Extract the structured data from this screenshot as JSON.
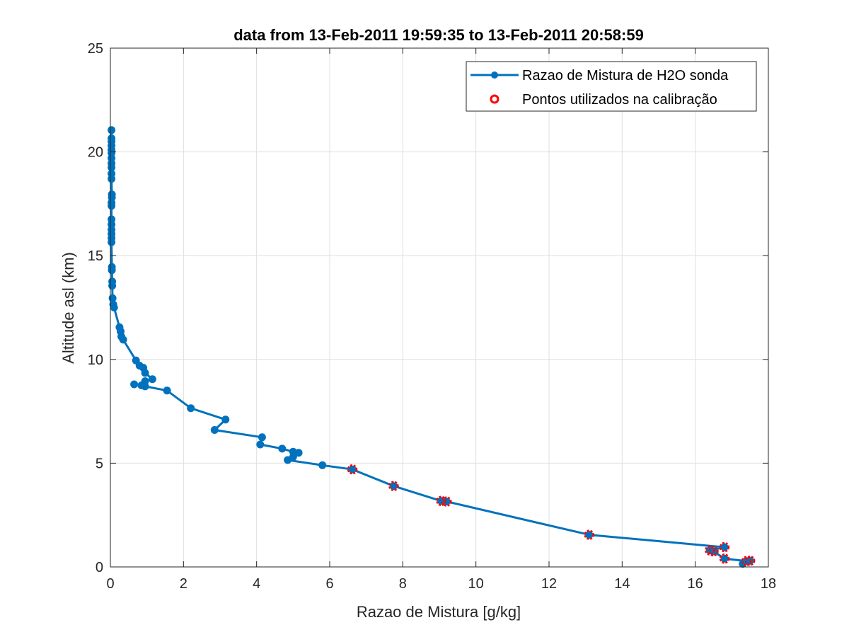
{
  "chart_data": {
    "type": "line",
    "title": "data from 13-Feb-2011 19:59:35 to 13-Feb-2011 20:58:59",
    "xlabel": "Razao de Mistura [g/kg]",
    "ylabel": "Altitude asl (km)",
    "xlim": [
      0,
      18
    ],
    "ylim": [
      0,
      25
    ],
    "x_ticks": [
      0,
      2,
      4,
      6,
      8,
      10,
      12,
      14,
      16,
      18
    ],
    "y_ticks": [
      0,
      5,
      10,
      15,
      20,
      25
    ],
    "grid": true,
    "legend_position": "top-right",
    "colors": {
      "series": "#0072BD",
      "calibration": "#FF0000",
      "grid": "#DFDFDF",
      "axes": "#262626"
    },
    "series": [
      {
        "name": "Razao de Mistura de H2O sonda",
        "style": "line-with-filled-markers",
        "points": [
          [
            17.3,
            0.15
          ],
          [
            17.5,
            0.3
          ],
          [
            17.4,
            0.28
          ],
          [
            16.8,
            0.4
          ],
          [
            16.5,
            0.75
          ],
          [
            16.4,
            0.8
          ],
          [
            16.8,
            0.95
          ],
          [
            13.1,
            1.55
          ],
          [
            9.2,
            3.15
          ],
          [
            9.05,
            3.18
          ],
          [
            7.75,
            3.9
          ],
          [
            6.62,
            4.7
          ],
          [
            5.8,
            4.9
          ],
          [
            4.85,
            5.15
          ],
          [
            5.0,
            5.3
          ],
          [
            5.15,
            5.5
          ],
          [
            5.0,
            5.55
          ],
          [
            4.7,
            5.7
          ],
          [
            4.1,
            5.9
          ],
          [
            4.15,
            6.25
          ],
          [
            2.85,
            6.6
          ],
          [
            3.15,
            7.1
          ],
          [
            2.2,
            7.65
          ],
          [
            1.55,
            8.5
          ],
          [
            0.95,
            8.7
          ],
          [
            0.65,
            8.8
          ],
          [
            0.85,
            8.75
          ],
          [
            0.95,
            8.95
          ],
          [
            1.15,
            9.05
          ],
          [
            0.95,
            9.35
          ],
          [
            0.9,
            9.6
          ],
          [
            0.8,
            9.7
          ],
          [
            0.7,
            9.95
          ],
          [
            0.35,
            10.95
          ],
          [
            0.3,
            11.1
          ],
          [
            0.28,
            11.35
          ],
          [
            0.25,
            11.55
          ],
          [
            0.1,
            12.5
          ],
          [
            0.08,
            12.65
          ],
          [
            0.06,
            12.95
          ],
          [
            0.05,
            13.55
          ],
          [
            0.05,
            13.75
          ],
          [
            0.04,
            14.3
          ],
          [
            0.04,
            14.45
          ],
          [
            0.03,
            15.65
          ],
          [
            0.03,
            15.85
          ],
          [
            0.03,
            16.05
          ],
          [
            0.03,
            16.25
          ],
          [
            0.03,
            16.5
          ],
          [
            0.03,
            16.75
          ],
          [
            0.03,
            17.4
          ],
          [
            0.03,
            17.55
          ],
          [
            0.04,
            17.8
          ],
          [
            0.04,
            17.95
          ],
          [
            0.03,
            18.7
          ],
          [
            0.03,
            18.95
          ],
          [
            0.03,
            19.25
          ],
          [
            0.03,
            19.45
          ],
          [
            0.03,
            19.7
          ],
          [
            0.03,
            19.95
          ],
          [
            0.03,
            20.1
          ],
          [
            0.03,
            20.3
          ],
          [
            0.03,
            20.5
          ],
          [
            0.03,
            20.65
          ],
          [
            0.03,
            21.05
          ]
        ]
      },
      {
        "name": "Pontos utilizados na calibração",
        "style": "open-circle-markers",
        "points": [
          [
            17.5,
            0.3
          ],
          [
            17.4,
            0.28
          ],
          [
            16.8,
            0.4
          ],
          [
            16.5,
            0.75
          ],
          [
            16.4,
            0.8
          ],
          [
            16.8,
            0.95
          ],
          [
            13.1,
            1.55
          ],
          [
            9.2,
            3.15
          ],
          [
            9.05,
            3.18
          ],
          [
            7.75,
            3.9
          ],
          [
            6.62,
            4.7
          ]
        ]
      }
    ]
  }
}
